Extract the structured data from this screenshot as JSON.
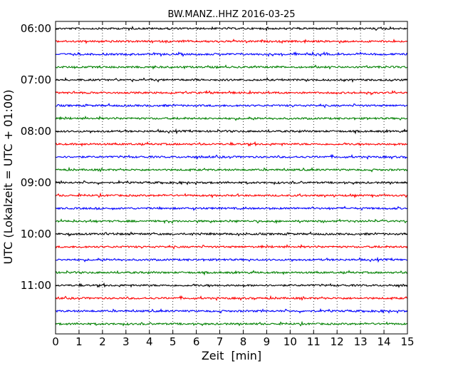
{
  "chart_data": {
    "type": "line",
    "title": "BW.MANZ..HHZ 2016-03-25",
    "xlabel": "Zeit  [min]",
    "ylabel": "UTC (Lokalzeit = UTC + 01:00)",
    "xlim": [
      0,
      15
    ],
    "x_ticks": [
      "0",
      "1",
      "2",
      "3",
      "4",
      "5",
      "6",
      "7",
      "8",
      "9",
      "10",
      "11",
      "12",
      "13",
      "14",
      "15"
    ],
    "y_tick_labels": [
      "06:00",
      "07:00",
      "08:00",
      "09:00",
      "10:00",
      "11:00"
    ],
    "grid": "vertical dotted",
    "colors": [
      "#000000",
      "#ff0000",
      "#0000ff",
      "#008000"
    ],
    "series": [
      {
        "start": "06:00",
        "color": "#000000"
      },
      {
        "start": "06:15",
        "color": "#ff0000"
      },
      {
        "start": "06:30",
        "color": "#0000ff"
      },
      {
        "start": "06:45",
        "color": "#008000"
      },
      {
        "start": "07:00",
        "color": "#000000"
      },
      {
        "start": "07:15",
        "color": "#ff0000"
      },
      {
        "start": "07:30",
        "color": "#0000ff"
      },
      {
        "start": "07:45",
        "color": "#008000"
      },
      {
        "start": "08:00",
        "color": "#000000"
      },
      {
        "start": "08:15",
        "color": "#ff0000"
      },
      {
        "start": "08:30",
        "color": "#0000ff"
      },
      {
        "start": "08:45",
        "color": "#008000"
      },
      {
        "start": "09:00",
        "color": "#000000"
      },
      {
        "start": "09:15",
        "color": "#ff0000"
      },
      {
        "start": "09:30",
        "color": "#0000ff"
      },
      {
        "start": "09:45",
        "color": "#008000"
      },
      {
        "start": "10:00",
        "color": "#000000"
      },
      {
        "start": "10:15",
        "color": "#ff0000"
      },
      {
        "start": "10:30",
        "color": "#0000ff"
      },
      {
        "start": "10:45",
        "color": "#008000"
      },
      {
        "start": "11:00",
        "color": "#000000"
      },
      {
        "start": "11:15",
        "color": "#ff0000"
      },
      {
        "start": "11:30",
        "color": "#0000ff"
      },
      {
        "start": "11:45",
        "color": "#008000"
      }
    ]
  }
}
